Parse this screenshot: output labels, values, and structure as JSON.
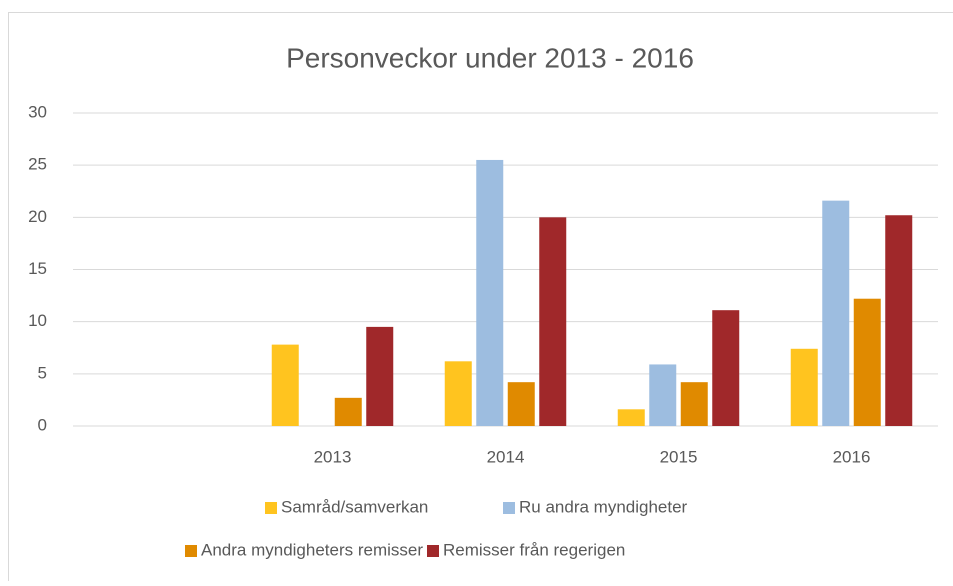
{
  "chart_data": {
    "type": "bar",
    "title": "Personveckor under 2013 - 2016",
    "categories": [
      null,
      "2013",
      "2014",
      "2015",
      "2016"
    ],
    "series": [
      {
        "name": "Samråd/samverkan",
        "color": "#ffc41f",
        "values": [
          null,
          7.8,
          6.2,
          1.6,
          7.4
        ]
      },
      {
        "name": "Ru andra myndigheter",
        "color": "#9dbde0",
        "values": [
          null,
          null,
          25.5,
          5.9,
          21.6
        ]
      },
      {
        "name": "Andra myndigheters remisser",
        "color": "#e08a00",
        "values": [
          null,
          2.7,
          4.2,
          4.2,
          12.2
        ]
      },
      {
        "name": "Remisser från regerigen",
        "color": "#a0282a",
        "values": [
          null,
          9.5,
          20.0,
          11.1,
          20.2
        ]
      }
    ],
    "ylim": [
      0,
      30
    ],
    "yticks": [
      0,
      5,
      10,
      15,
      20,
      25,
      30
    ],
    "grid": true,
    "legend": "bottom"
  }
}
